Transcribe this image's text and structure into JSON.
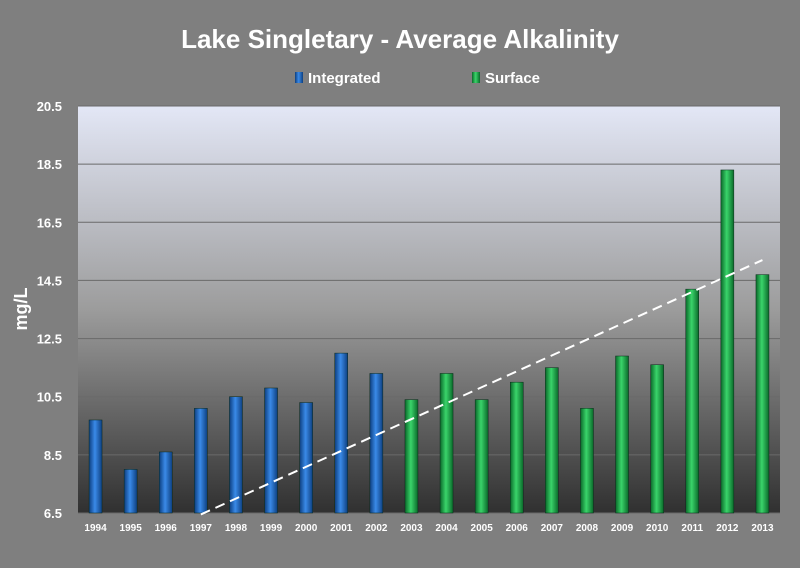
{
  "chart_data": {
    "type": "bar",
    "title": "Lake Singletary - Average Alkalinity",
    "ylabel": "mg/L",
    "xlabel": "",
    "ylim": [
      6.5,
      20.5
    ],
    "yticks": [
      "6.5",
      "8.5",
      "10.5",
      "12.5",
      "14.5",
      "16.5",
      "18.5",
      "20.5"
    ],
    "grid": true,
    "legend_position": "top-center",
    "categories": [
      "1994",
      "1995",
      "1996",
      "1997",
      "1998",
      "1999",
      "2000",
      "2001",
      "2002",
      "2003",
      "2004",
      "2005",
      "2006",
      "2007",
      "2008",
      "2009",
      "2010",
      "2011",
      "2012",
      "2013"
    ],
    "series": [
      {
        "name": "Integrated",
        "color": "#1f6fc8",
        "values": [
          9.7,
          8.0,
          8.6,
          10.1,
          10.5,
          10.8,
          10.3,
          12.0,
          11.3,
          null,
          null,
          null,
          null,
          null,
          null,
          null,
          null,
          null,
          null,
          null
        ]
      },
      {
        "name": "Surface",
        "color": "#1aa84a",
        "values": [
          null,
          null,
          null,
          null,
          null,
          null,
          null,
          null,
          null,
          10.4,
          11.3,
          10.4,
          11.0,
          11.5,
          10.1,
          11.9,
          11.6,
          14.2,
          18.3,
          14.7
        ]
      }
    ],
    "trendline": {
      "style": "dashed",
      "color": "#ffffff",
      "start": {
        "x": "1997",
        "y": 6.45
      },
      "end": {
        "x": "2013",
        "y": 15.2
      }
    }
  }
}
